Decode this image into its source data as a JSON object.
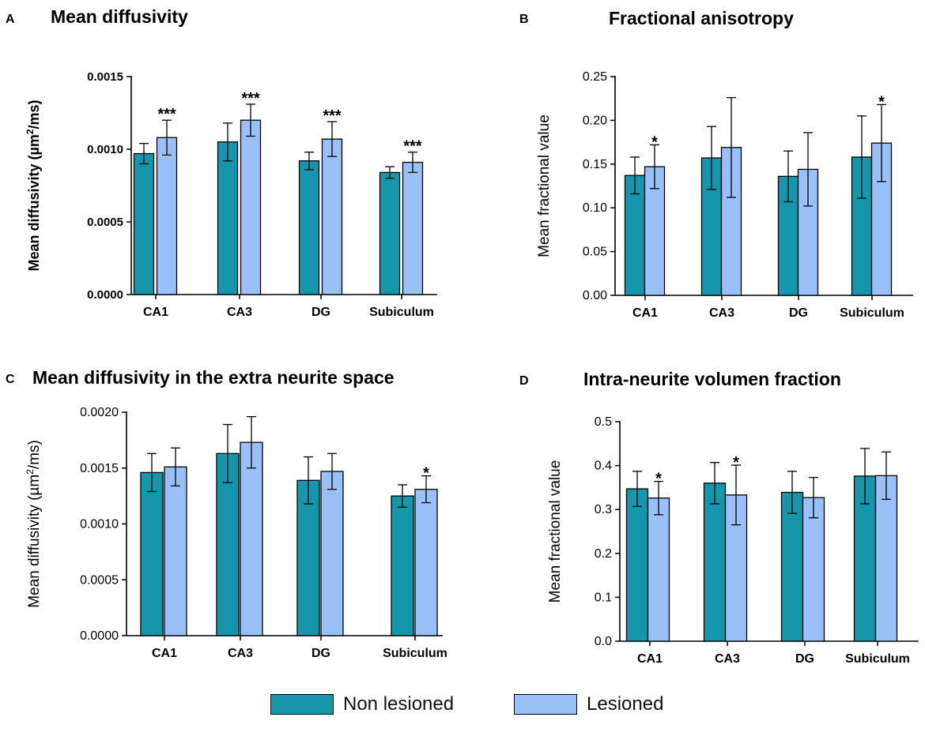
{
  "colors": {
    "non_lesioned": "#1596AA",
    "lesioned": "#99C1F8",
    "axis": "#000000"
  },
  "legend": {
    "non_lesioned": "Non lesioned",
    "lesioned": "Lesioned"
  },
  "chart_data": [
    {
      "panel": "A",
      "type": "bar",
      "title": "Mean diffusivity",
      "ylabel": "Mean diffusivity (µm²/ms)",
      "ylabel_base": "Mean diffusivity (µm",
      "ylabel_sup": "2",
      "ylabel_tail": "/ms)",
      "ylim": [
        0,
        0.0015
      ],
      "yticks": [
        "0.0000",
        "0.0005",
        "0.0010",
        "0.0015"
      ],
      "ytick_values": [
        0,
        0.0005,
        0.001,
        0.0015
      ],
      "categories": [
        "CA1",
        "CA3",
        "DG",
        "Subiculum"
      ],
      "series": [
        {
          "name": "Non lesioned",
          "values": [
            0.00097,
            0.00105,
            0.00092,
            0.00084
          ],
          "errors": [
            7e-05,
            0.00013,
            6e-05,
            4e-05
          ]
        },
        {
          "name": "Lesioned",
          "values": [
            0.00108,
            0.0012,
            0.00107,
            0.00091
          ],
          "errors": [
            0.00012,
            0.00011,
            0.00012,
            7e-05
          ]
        }
      ],
      "significance": [
        "***",
        "***",
        "***",
        "***"
      ]
    },
    {
      "panel": "B",
      "type": "bar",
      "title": "Fractional anisotropy",
      "ylabel": "Mean fractional value",
      "ylim": [
        0,
        0.25
      ],
      "yticks": [
        "0.00",
        "0.05",
        "0.10",
        "0.15",
        "0.20",
        "0.25"
      ],
      "ytick_values": [
        0,
        0.05,
        0.1,
        0.15,
        0.2,
        0.25
      ],
      "categories": [
        "CA1",
        "CA3",
        "DG",
        "Subiculum"
      ],
      "series": [
        {
          "name": "Non lesioned",
          "values": [
            0.137,
            0.157,
            0.136,
            0.158
          ],
          "errors": [
            0.021,
            0.036,
            0.029,
            0.047
          ]
        },
        {
          "name": "Lesioned",
          "values": [
            0.147,
            0.169,
            0.144,
            0.174
          ],
          "errors": [
            0.025,
            0.057,
            0.042,
            0.044
          ]
        }
      ],
      "significance": [
        "*",
        "",
        "",
        "*"
      ]
    },
    {
      "panel": "C",
      "type": "bar",
      "title": "Mean diffusivity in the extra neurite space",
      "ylabel": "Mean diffusivity (µm²/ms)",
      "ylabel_base": "Mean diffusivity (µm",
      "ylabel_sup": "2",
      "ylabel_tail": "/ms)",
      "ylim": [
        0,
        0.002
      ],
      "yticks": [
        "0.0000",
        "0.0005",
        "0.0010",
        "0.0015",
        "0.0020"
      ],
      "ytick_values": [
        0,
        0.0005,
        0.001,
        0.0015,
        0.002
      ],
      "categories": [
        "CA1",
        "CA3",
        "DG",
        "Subiculum"
      ],
      "series": [
        {
          "name": "Non lesioned",
          "values": [
            0.00146,
            0.00163,
            0.00139,
            0.00125
          ],
          "errors": [
            0.00017,
            0.00026,
            0.00021,
            0.0001
          ]
        },
        {
          "name": "Lesioned",
          "values": [
            0.00151,
            0.00173,
            0.00147,
            0.00131
          ],
          "errors": [
            0.00017,
            0.00023,
            0.00016,
            0.00012
          ]
        }
      ],
      "significance": [
        "",
        "",
        "",
        "*"
      ]
    },
    {
      "panel": "D",
      "type": "bar",
      "title": "Intra-neurite volumen fraction",
      "ylabel": "Mean fractional value",
      "ylim": [
        0,
        0.5
      ],
      "yticks": [
        "0.0",
        "0.1",
        "0.2",
        "0.3",
        "0.4",
        "0.5"
      ],
      "ytick_values": [
        0,
        0.1,
        0.2,
        0.3,
        0.4,
        0.5
      ],
      "categories": [
        "CA1",
        "CA3",
        "DG",
        "Subiculum"
      ],
      "series": [
        {
          "name": "Non lesioned",
          "values": [
            0.347,
            0.36,
            0.339,
            0.376
          ],
          "errors": [
            0.04,
            0.047,
            0.048,
            0.063
          ]
        },
        {
          "name": "Lesioned",
          "values": [
            0.326,
            0.333,
            0.327,
            0.377
          ],
          "errors": [
            0.038,
            0.068,
            0.046,
            0.054
          ]
        }
      ],
      "significance": [
        "*",
        "*",
        "",
        ""
      ]
    }
  ]
}
